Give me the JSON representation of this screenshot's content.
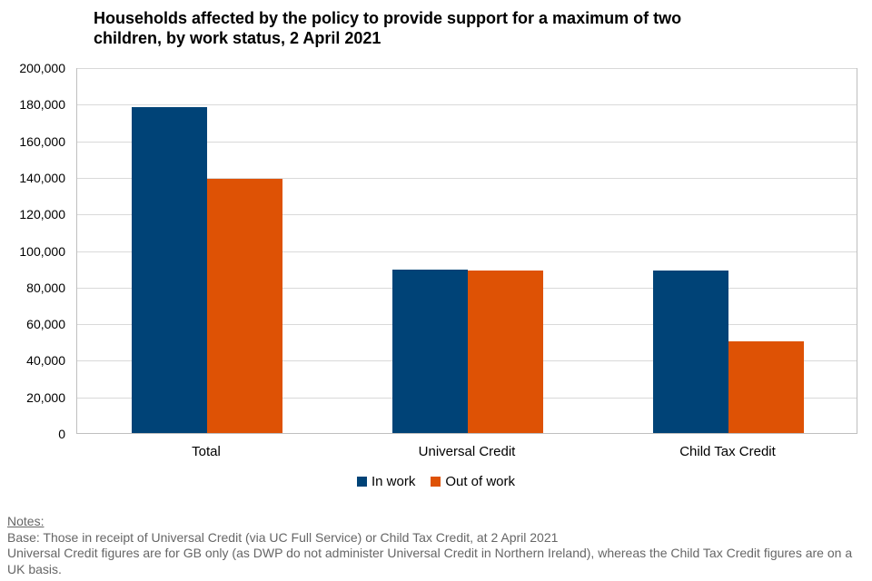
{
  "title": {
    "line1": "Households affected by the policy to provide support for a maximum of two",
    "line2": "children, by work status, 2 April 2021"
  },
  "chart_data": {
    "type": "bar",
    "title": "Households affected by the policy to provide support for a maximum of two children, by work status, 2 April 2021",
    "categories": [
      "Total",
      "Universal Credit",
      "Child Tax Credit"
    ],
    "series": [
      {
        "name": "In work",
        "color": "#004377",
        "values": [
          178000,
          89400,
          88600
        ]
      },
      {
        "name": "Out of work",
        "color": "#DE5205",
        "values": [
          139000,
          88600,
          50300
        ]
      }
    ],
    "xlabel": "",
    "ylabel": "",
    "ylim": [
      0,
      200000
    ],
    "ytick_step": 20000,
    "ytick_labels": [
      "0",
      "20,000",
      "40,000",
      "60,000",
      "80,000",
      "100,000",
      "120,000",
      "140,000",
      "160,000",
      "180,000",
      "200,000"
    ],
    "grid": true,
    "legend_position": "bottom",
    "gridline_color": "#d9d9d9",
    "plot_border_color": "#bfbfbf"
  },
  "notes": {
    "heading": "Notes:",
    "lines": [
      "Base: Those in receipt of Universal Credit (via UC Full Service) or Child Tax Credit, at 2 April 2021",
      "Universal Credit figures are for GB only (as DWP do not administer Universal Credit in Northern Ireland), whereas the Child Tax Credit figures are on a UK basis."
    ]
  }
}
